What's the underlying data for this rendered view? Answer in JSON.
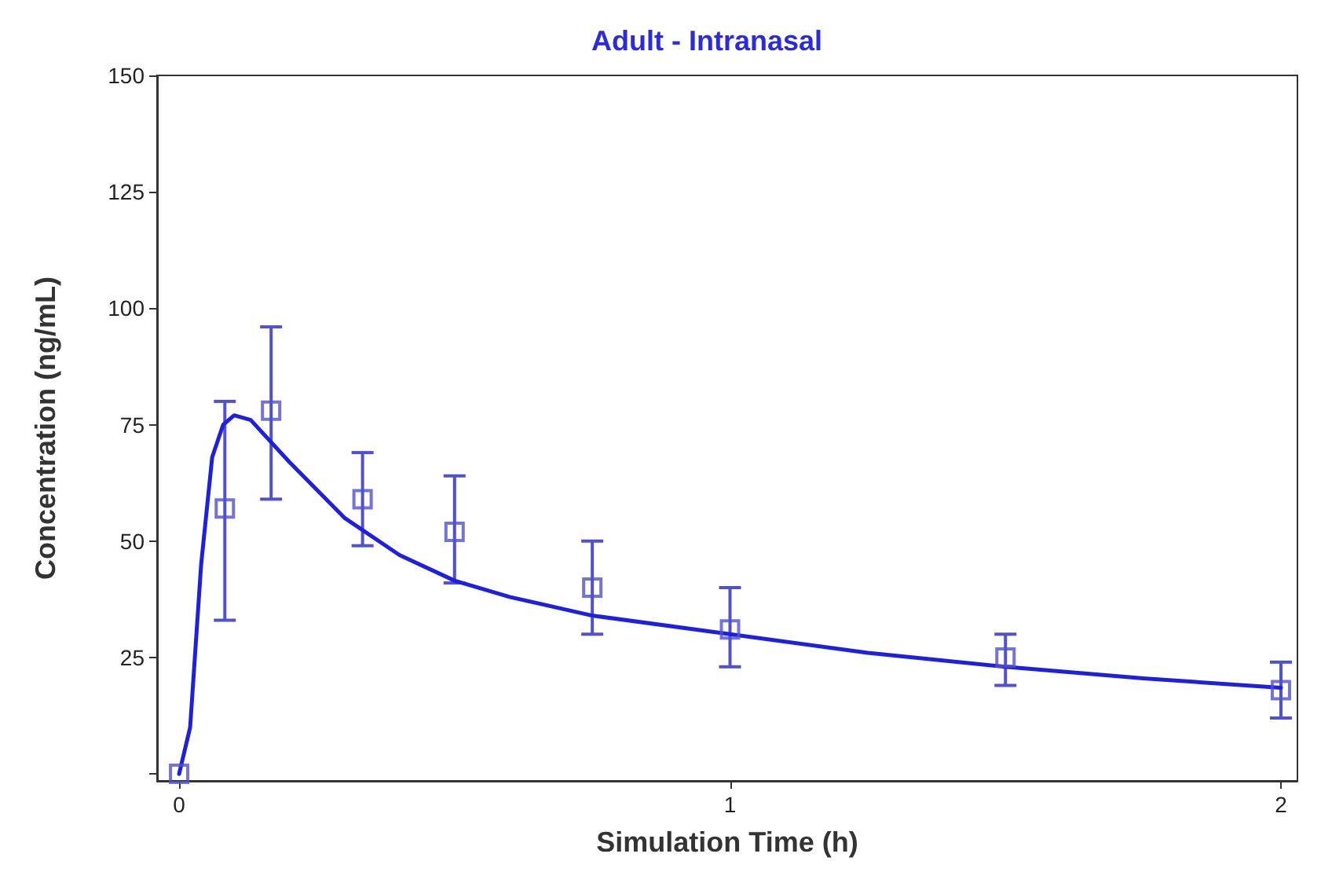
{
  "chart_data": {
    "type": "line",
    "title": "Adult - Intranasal",
    "xlabel": "Simulation Time (h)",
    "ylabel": "Concentration (ng/mL)",
    "xlim": [
      -0.04,
      2.03
    ],
    "xticks": [
      0,
      1,
      2
    ],
    "ylim": [
      -1.5,
      150
    ],
    "yticks": [
      {
        "value": 0,
        "label": null
      },
      25,
      50,
      75,
      100,
      125,
      150
    ],
    "grid": false,
    "series": [
      {
        "color": "#1f1fe0",
        "marker": "none",
        "line_style": "solid",
        "x": [
          0,
          0.02,
          0.04,
          0.06,
          0.08,
          0.1,
          0.13,
          0.2,
          0.3,
          0.4,
          0.5,
          0.6,
          0.75,
          1,
          1.25,
          1.5,
          1.75,
          2
        ],
        "values": [
          0,
          10,
          45,
          68,
          75,
          77,
          76,
          67,
          55,
          47,
          41.5,
          38,
          34,
          30,
          26,
          23,
          20.5,
          18.5
        ]
      },
      {
        "type": "scatter",
        "color": "#5050d0",
        "marker": "square",
        "x": [
          0,
          0.083,
          0.167,
          0.333,
          0.5,
          0.75,
          1,
          1.5,
          2
        ],
        "values": [
          0,
          57,
          78,
          59,
          52,
          40,
          31,
          25,
          18
        ],
        "errors": [
          null,
          [
            33,
            80
          ],
          [
            59,
            96
          ],
          [
            49,
            69
          ],
          [
            41,
            64
          ],
          [
            30,
            50
          ],
          [
            23,
            40
          ],
          [
            19,
            30
          ],
          [
            12,
            24
          ]
        ]
      }
    ]
  }
}
